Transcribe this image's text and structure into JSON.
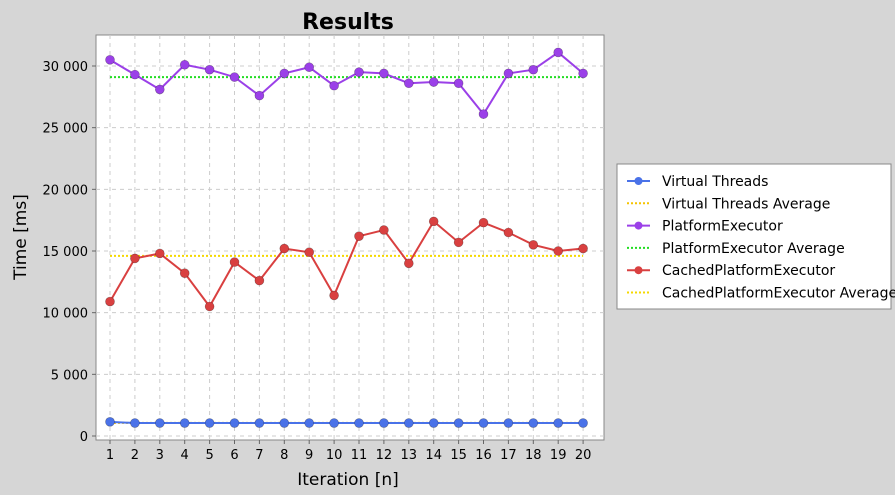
{
  "chart_data": {
    "type": "line",
    "title": "Results",
    "xlabel": "Iteration [n]",
    "ylabel": "Time [ms]",
    "x": [
      1,
      2,
      3,
      4,
      5,
      6,
      7,
      8,
      9,
      10,
      11,
      12,
      13,
      14,
      15,
      16,
      17,
      18,
      19,
      20
    ],
    "ylim": [
      0,
      32500
    ],
    "yticks": [
      0,
      5000,
      10000,
      15000,
      20000,
      25000,
      30000
    ],
    "ytick_labels": [
      "0",
      "5 000",
      "10 000",
      "15 000",
      "20 000",
      "25 000",
      "30 000"
    ],
    "xtick_labels": [
      "1",
      "2",
      "3",
      "4",
      "5",
      "6",
      "7",
      "8",
      "9",
      "10",
      "11",
      "12",
      "13",
      "14",
      "15",
      "16",
      "17",
      "18",
      "19",
      "20"
    ],
    "grid": true,
    "legend_position": "right",
    "series": [
      {
        "name": "Virtual Threads",
        "style": "line-markers",
        "color": "#4a72e8",
        "values": [
          1150,
          1050,
          1050,
          1050,
          1050,
          1050,
          1050,
          1050,
          1050,
          1050,
          1050,
          1050,
          1050,
          1050,
          1050,
          1050,
          1050,
          1050,
          1050,
          1050
        ]
      },
      {
        "name": "Virtual Threads Average",
        "style": "dotted",
        "color": "#f5c400",
        "values": [
          1060,
          1060,
          1060,
          1060,
          1060,
          1060,
          1060,
          1060,
          1060,
          1060,
          1060,
          1060,
          1060,
          1060,
          1060,
          1060,
          1060,
          1060,
          1060,
          1060
        ]
      },
      {
        "name": "PlatformExecutor",
        "style": "line-markers",
        "color": "#9b40e8",
        "values": [
          30500,
          29300,
          28100,
          30100,
          29700,
          29100,
          27600,
          29400,
          29900,
          28400,
          29500,
          29400,
          28600,
          28700,
          28600,
          26100,
          29400,
          29700,
          31100,
          29400
        ]
      },
      {
        "name": "PlatformExecutor Average",
        "style": "dotted",
        "color": "#22dd22",
        "values": [
          29100,
          29100,
          29100,
          29100,
          29100,
          29100,
          29100,
          29100,
          29100,
          29100,
          29100,
          29100,
          29100,
          29100,
          29100,
          29100,
          29100,
          29100,
          29100,
          29100
        ]
      },
      {
        "name": "CachedPlatformExecutor",
        "style": "line-markers",
        "color": "#d94040",
        "values": [
          10900,
          14400,
          14800,
          13200,
          10500,
          14100,
          12600,
          15200,
          14900,
          11400,
          16200,
          16700,
          14000,
          17400,
          15700,
          17300,
          16500,
          15500,
          15000,
          15200
        ]
      },
      {
        "name": "CachedPlatformExecutor Average",
        "style": "dotted",
        "color": "#f5d800",
        "values": [
          14600,
          14600,
          14600,
          14600,
          14600,
          14600,
          14600,
          14600,
          14600,
          14600,
          14600,
          14600,
          14600,
          14600,
          14600,
          14600,
          14600,
          14600,
          14600,
          14600
        ]
      }
    ]
  }
}
